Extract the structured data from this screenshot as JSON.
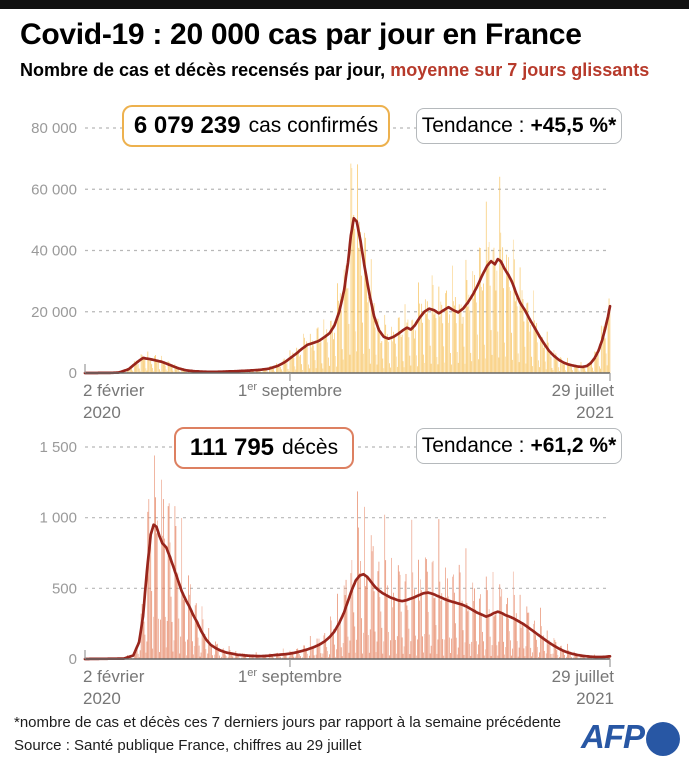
{
  "header": {
    "title": "Covid-19 : 20 000 cas par jour en France",
    "subtitle_black": "Nombre de cas et décès recensés par jour, ",
    "subtitle_red": "moyenne sur 7 jours glissants"
  },
  "badges": {
    "cases": {
      "number": "6 079 239",
      "label": "cas confirmés"
    },
    "deaths": {
      "number": "111 795",
      "label": "décès"
    },
    "trend_cases": {
      "label": "Tendance :",
      "value": "+45,5 %*"
    },
    "trend_deaths": {
      "label": "Tendance :",
      "value": "+61,2 %*"
    }
  },
  "footer": {
    "note": "*nombre de cas et décès ces 7 derniers jours par rapport à la semaine précédente",
    "source": "Source : Santé publique France, chiffres au 29 juillet",
    "logo": "AFP"
  },
  "colors": {
    "cases_bar": "#f7c25c",
    "cases_accent": "#edb14e",
    "deaths_bar": "#e58260",
    "deaths_accent": "#dd8061",
    "avg_line": "#98251c",
    "grid": "#b8b8b8",
    "tick_label": "#9a9a9a",
    "date_label": "#777777",
    "afp_blue": "#2857a4",
    "subtitle_red": "#b73a2b"
  },
  "chart_data": [
    {
      "id": "cases",
      "type": "bar",
      "title": "6 079 239 cas confirmés",
      "trend": "+45,5 %*",
      "days": 543,
      "ylim": [
        0,
        80000
      ],
      "yticks": [
        {
          "value": 0,
          "label": "0"
        },
        {
          "value": 20000,
          "label": "20 000"
        },
        {
          "value": 40000,
          "label": "40 000"
        },
        {
          "value": 60000,
          "label": "60 000"
        },
        {
          "value": 80000,
          "label": "80 000"
        }
      ],
      "xticks": [
        {
          "pos": "start",
          "day": 0,
          "line1": "2 février",
          "line2": "2020"
        },
        {
          "pos": "mid",
          "day": 212,
          "num": "1",
          "sup": "er",
          "rest": " septembre"
        },
        {
          "pos": "end",
          "day": 543,
          "line1": "29 juillet",
          "line2": "2021"
        }
      ],
      "series": [
        {
          "name": "cas quotidiens",
          "kind": "bars_derived_from_avg"
        },
        {
          "name": "moyenne sur 7 jours glissants",
          "kind": "line"
        }
      ],
      "avg_line": [
        [
          0,
          0
        ],
        [
          25,
          30
        ],
        [
          35,
          150
        ],
        [
          45,
          1200
        ],
        [
          55,
          3800
        ],
        [
          60,
          4900
        ],
        [
          66,
          4600
        ],
        [
          72,
          4200
        ],
        [
          80,
          3600
        ],
        [
          88,
          2600
        ],
        [
          96,
          1600
        ],
        [
          104,
          900
        ],
        [
          112,
          600
        ],
        [
          120,
          450
        ],
        [
          130,
          380
        ],
        [
          140,
          420
        ],
        [
          150,
          520
        ],
        [
          160,
          640
        ],
        [
          170,
          800
        ],
        [
          180,
          1000
        ],
        [
          190,
          1400
        ],
        [
          200,
          2400
        ],
        [
          207,
          3600
        ],
        [
          212,
          4800
        ],
        [
          218,
          6200
        ],
        [
          224,
          7800
        ],
        [
          230,
          9200
        ],
        [
          236,
          9800
        ],
        [
          242,
          10500
        ],
        [
          248,
          11800
        ],
        [
          253,
          13000
        ],
        [
          258,
          15500
        ],
        [
          263,
          20000
        ],
        [
          268,
          27000
        ],
        [
          272,
          36000
        ],
        [
          275,
          45000
        ],
        [
          278,
          50500
        ],
        [
          281,
          49500
        ],
        [
          285,
          43000
        ],
        [
          289,
          35000
        ],
        [
          294,
          26000
        ],
        [
          299,
          18500
        ],
        [
          304,
          14000
        ],
        [
          309,
          11800
        ],
        [
          314,
          11200
        ],
        [
          319,
          11800
        ],
        [
          324,
          12800
        ],
        [
          329,
          14000
        ],
        [
          333,
          14800
        ],
        [
          337,
          14200
        ],
        [
          341,
          15500
        ],
        [
          346,
          18000
        ],
        [
          351,
          20000
        ],
        [
          356,
          21000
        ],
        [
          361,
          20500
        ],
        [
          366,
          19500
        ],
        [
          371,
          20500
        ],
        [
          376,
          21500
        ],
        [
          381,
          20500
        ],
        [
          386,
          19800
        ],
        [
          391,
          21000
        ],
        [
          396,
          23000
        ],
        [
          401,
          25500
        ],
        [
          406,
          28500
        ],
        [
          411,
          32000
        ],
        [
          416,
          35000
        ],
        [
          420,
          36500
        ],
        [
          424,
          35500
        ],
        [
          427,
          37200
        ],
        [
          430,
          36500
        ],
        [
          434,
          34000
        ],
        [
          438,
          32000
        ],
        [
          442,
          29500
        ],
        [
          446,
          26000
        ],
        [
          450,
          23000
        ],
        [
          455,
          20500
        ],
        [
          460,
          17500
        ],
        [
          465,
          14800
        ],
        [
          470,
          12000
        ],
        [
          475,
          9500
        ],
        [
          480,
          7200
        ],
        [
          485,
          5600
        ],
        [
          490,
          4300
        ],
        [
          495,
          3400
        ],
        [
          500,
          2800
        ],
        [
          505,
          2400
        ],
        [
          510,
          2100
        ],
        [
          515,
          2000
        ],
        [
          519,
          2300
        ],
        [
          523,
          3200
        ],
        [
          527,
          4800
        ],
        [
          531,
          7200
        ],
        [
          535,
          10800
        ],
        [
          538,
          14500
        ],
        [
          541,
          18500
        ],
        [
          543,
          21800
        ]
      ],
      "bar_weekly_pattern": [
        0.35,
        0.15,
        1.42,
        1.15,
        1.05,
        0.98,
        0.85
      ],
      "bar_noise": [
        0.16,
        2.17,
        0.1,
        0.53
      ],
      "bar_clamp": 74000
    },
    {
      "id": "deaths",
      "type": "bar",
      "title": "111 795 décès",
      "trend": "+61,2 %*",
      "days": 543,
      "ylim": [
        0,
        1500
      ],
      "yticks": [
        {
          "value": 0,
          "label": "0"
        },
        {
          "value": 500,
          "label": "500"
        },
        {
          "value": 1000,
          "label": "1 000"
        },
        {
          "value": 1500,
          "label": "1 500"
        }
      ],
      "xticks": [
        {
          "pos": "start",
          "day": 0,
          "line1": "2 février",
          "line2": "2020"
        },
        {
          "pos": "mid",
          "day": 212,
          "num": "1",
          "sup": "er",
          "rest": " septembre"
        },
        {
          "pos": "end",
          "day": 543,
          "line1": "29 juillet",
          "line2": "2021"
        }
      ],
      "series": [
        {
          "name": "décès quotidiens",
          "kind": "bars_derived_from_avg"
        },
        {
          "name": "moyenne sur 7 jours glissants",
          "kind": "line"
        }
      ],
      "avg_line": [
        [
          0,
          0
        ],
        [
          40,
          3
        ],
        [
          50,
          25
        ],
        [
          56,
          120
        ],
        [
          60,
          300
        ],
        [
          64,
          620
        ],
        [
          68,
          880
        ],
        [
          71,
          950
        ],
        [
          74,
          935
        ],
        [
          77,
          870
        ],
        [
          80,
          820
        ],
        [
          84,
          790
        ],
        [
          88,
          720
        ],
        [
          92,
          640
        ],
        [
          96,
          560
        ],
        [
          100,
          480
        ],
        [
          104,
          420
        ],
        [
          108,
          370
        ],
        [
          112,
          310
        ],
        [
          116,
          260
        ],
        [
          120,
          200
        ],
        [
          125,
          140
        ],
        [
          130,
          100
        ],
        [
          135,
          78
        ],
        [
          140,
          60
        ],
        [
          146,
          46
        ],
        [
          152,
          38
        ],
        [
          158,
          30
        ],
        [
          164,
          26
        ],
        [
          170,
          23
        ],
        [
          176,
          21
        ],
        [
          182,
          20
        ],
        [
          188,
          22
        ],
        [
          194,
          26
        ],
        [
          200,
          30
        ],
        [
          206,
          33
        ],
        [
          212,
          38
        ],
        [
          218,
          46
        ],
        [
          224,
          56
        ],
        [
          230,
          68
        ],
        [
          236,
          82
        ],
        [
          242,
          100
        ],
        [
          248,
          125
        ],
        [
          253,
          155
        ],
        [
          258,
          195
        ],
        [
          263,
          255
        ],
        [
          268,
          330
        ],
        [
          272,
          410
        ],
        [
          276,
          490
        ],
        [
          280,
          555
        ],
        [
          284,
          590
        ],
        [
          288,
          600
        ],
        [
          292,
          580
        ],
        [
          296,
          545
        ],
        [
          300,
          510
        ],
        [
          304,
          485
        ],
        [
          308,
          465
        ],
        [
          312,
          450
        ],
        [
          316,
          435
        ],
        [
          320,
          425
        ],
        [
          324,
          415
        ],
        [
          328,
          410
        ],
        [
          332,
          415
        ],
        [
          336,
          425
        ],
        [
          340,
          435
        ],
        [
          345,
          450
        ],
        [
          350,
          465
        ],
        [
          355,
          470
        ],
        [
          360,
          460
        ],
        [
          365,
          445
        ],
        [
          370,
          430
        ],
        [
          375,
          415
        ],
        [
          380,
          405
        ],
        [
          385,
          395
        ],
        [
          390,
          385
        ],
        [
          395,
          370
        ],
        [
          400,
          350
        ],
        [
          405,
          330
        ],
        [
          410,
          315
        ],
        [
          415,
          300
        ],
        [
          419,
          310
        ],
        [
          423,
          325
        ],
        [
          427,
          335
        ],
        [
          431,
          325
        ],
        [
          435,
          310
        ],
        [
          439,
          300
        ],
        [
          444,
          285
        ],
        [
          449,
          265
        ],
        [
          454,
          245
        ],
        [
          459,
          220
        ],
        [
          464,
          195
        ],
        [
          469,
          170
        ],
        [
          474,
          145
        ],
        [
          479,
          120
        ],
        [
          484,
          98
        ],
        [
          489,
          78
        ],
        [
          494,
          60
        ],
        [
          499,
          47
        ],
        [
          504,
          37
        ],
        [
          509,
          29
        ],
        [
          514,
          23
        ],
        [
          519,
          19
        ],
        [
          524,
          16
        ],
        [
          529,
          14
        ],
        [
          534,
          14
        ],
        [
          539,
          16
        ],
        [
          543,
          19
        ]
      ],
      "bar_weekly_pattern": [
        0.08,
        0.3,
        1.7,
        1.32,
        1.12,
        0.95,
        0.4
      ],
      "bar_noise": [
        0.22,
        2.03,
        0.14,
        0.47
      ],
      "bar_clamp": 1440
    }
  ]
}
